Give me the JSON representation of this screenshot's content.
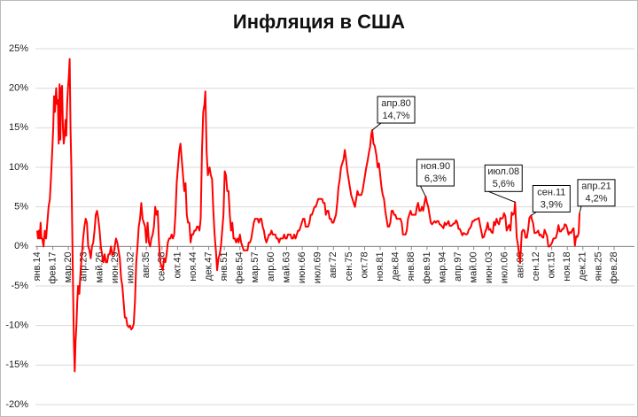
{
  "chart_data": {
    "type": "line",
    "title": "Инфляция в США",
    "grid": true,
    "color": "#ff0000",
    "ylim": [
      -20,
      25
    ],
    "yticks": [
      {
        "value": -20,
        "label": "-20%"
      },
      {
        "value": -15,
        "label": "-15%"
      },
      {
        "value": -10,
        "label": "-10%"
      },
      {
        "value": -5,
        "label": "-5%"
      },
      {
        "value": 0,
        "label": "0%"
      },
      {
        "value": 5,
        "label": "5%"
      },
      {
        "value": 10,
        "label": "10%"
      },
      {
        "value": 15,
        "label": "15%"
      },
      {
        "value": 20,
        "label": "20%"
      },
      {
        "value": 25,
        "label": "25%"
      }
    ],
    "xticks": [
      "янв.14",
      "фев.17",
      "мар.20",
      "апр.23",
      "май.26",
      "июн.29",
      "июл.32",
      "авг.35",
      "сен.38",
      "окт.41",
      "ноя.44",
      "дек.47",
      "янв.51",
      "фев.54",
      "мар.57",
      "апр.60",
      "май.63",
      "июн.66",
      "июл.69",
      "авг.72",
      "сен.75",
      "окт.78",
      "ноя.81",
      "дек.84",
      "янв.88",
      "фев.91",
      "мар.94",
      "апр.97",
      "май.00",
      "июн.03",
      "июл.06",
      "авг.09",
      "сен.12",
      "окт.15",
      "ноя.18",
      "дек.21",
      "янв.25",
      "фев.28"
    ],
    "x": [
      "янв.14",
      "мар.14",
      "май.14",
      "июл.14",
      "сен.14",
      "ноя.14",
      "янв.15",
      "апр.15",
      "июл.15",
      "окт.15",
      "янв.16",
      "апр.16",
      "июл.16",
      "окт.16",
      "янв.17",
      "мар.17",
      "май.17",
      "июл.17",
      "окт.17",
      "дек.17",
      "фев.18",
      "апр.18",
      "июн.18",
      "авг.18",
      "окт.18",
      "дек.18",
      "фев.19",
      "апр.19",
      "июн.19",
      "авг.19",
      "окт.19",
      "дек.19",
      "фев.20",
      "апр.20",
      "июн.20",
      "авг.20",
      "окт.20",
      "дек.20",
      "фев.21",
      "апр.21",
      "июн.21",
      "авг.21",
      "окт.21",
      "дек.21",
      "фев.22",
      "май.22",
      "авг.22",
      "ноя.22",
      "фев.23",
      "май.23",
      "авг.23",
      "ноя.23",
      "фев.24",
      "май.24",
      "авг.24",
      "ноя.24",
      "фев.25",
      "май.25",
      "авг.25",
      "ноя.25",
      "фев.26",
      "май.26",
      "авг.26",
      "ноя.26",
      "фев.27",
      "май.27",
      "авг.27",
      "ноя.27",
      "фев.28",
      "май.28",
      "авг.28",
      "ноя.28",
      "фев.29",
      "май.29",
      "авг.29",
      "ноя.29",
      "фев.30",
      "май.30",
      "авг.30",
      "ноя.30",
      "фев.31",
      "май.31",
      "авг.31",
      "ноя.31",
      "фев.32",
      "май.32",
      "авг.32",
      "ноя.32",
      "фев.33",
      "май.33",
      "авг.33",
      "ноя.33",
      "фев.34",
      "май.34",
      "авг.34",
      "ноя.34",
      "фев.35",
      "май.35",
      "авг.35",
      "ноя.35",
      "фев.36",
      "май.36",
      "авг.36",
      "ноя.36",
      "фев.37",
      "май.37",
      "авг.37",
      "ноя.37",
      "фев.38",
      "май.38",
      "авг.38",
      "ноя.38",
      "фев.39",
      "май.39",
      "авг.39",
      "ноя.39",
      "фев.40",
      "май.40",
      "авг.40",
      "ноя.40",
      "фев.41",
      "май.41",
      "авг.41",
      "ноя.41",
      "фев.42",
      "май.42",
      "авг.42",
      "ноя.42",
      "фев.43",
      "май.43",
      "авг.43",
      "ноя.43",
      "фев.44",
      "май.44",
      "авг.44",
      "ноя.44",
      "фев.45",
      "май.45",
      "авг.45",
      "ноя.45",
      "фев.46",
      "май.46",
      "авг.46",
      "ноя.46",
      "фев.47",
      "апр.47",
      "июл.47",
      "окт.47",
      "фев.48",
      "май.48",
      "авг.48",
      "ноя.48",
      "фев.49",
      "май.49",
      "авг.49",
      "ноя.49",
      "фев.50",
      "май.50",
      "авг.50",
      "ноя.50",
      "фев.51",
      "май.51",
      "авг.51",
      "ноя.51",
      "фев.52",
      "май.52",
      "авг.52",
      "ноя.52",
      "фев.53",
      "май.53",
      "авг.53",
      "ноя.53",
      "фев.54",
      "май.54",
      "авг.54",
      "ноя.54",
      "фев.55",
      "май.55",
      "авг.55",
      "ноя.55",
      "фев.56",
      "май.56",
      "авг.56",
      "ноя.56",
      "фев.57",
      "май.57",
      "авг.57",
      "ноя.57",
      "фев.58",
      "май.58",
      "авг.58",
      "ноя.58",
      "фев.59",
      "май.59",
      "авг.59",
      "ноя.59",
      "фев.60",
      "май.60",
      "авг.60",
      "ноя.60",
      "фев.61",
      "май.61",
      "авг.61",
      "ноя.61",
      "фев.62",
      "май.62",
      "авг.62",
      "ноя.62",
      "фев.63",
      "май.63",
      "авг.63",
      "ноя.63",
      "фев.64",
      "май.64",
      "авг.64",
      "ноя.64",
      "фев.65",
      "май.65",
      "авг.65",
      "ноя.65",
      "фев.66",
      "май.66",
      "авг.66",
      "ноя.66",
      "фев.67",
      "май.67",
      "авг.67",
      "ноя.67",
      "фев.68",
      "май.68",
      "авг.68",
      "ноя.68",
      "фев.69",
      "май.69",
      "авг.69",
      "ноя.69",
      "фев.70",
      "май.70",
      "авг.70",
      "ноя.70",
      "фев.71",
      "май.71",
      "авг.71",
      "ноя.71",
      "фев.72",
      "май.72",
      "авг.72",
      "ноя.72",
      "фев.73",
      "май.73",
      "авг.73",
      "ноя.73",
      "фев.74",
      "май.74",
      "авг.74",
      "ноя.74",
      "фев.75",
      "май.75",
      "авг.75",
      "ноя.75",
      "фев.76",
      "май.76",
      "авг.76",
      "ноя.76",
      "фев.77",
      "май.77",
      "авг.77",
      "ноя.77",
      "фев.78",
      "май.78",
      "авг.78",
      "ноя.78",
      "фев.79",
      "май.79",
      "авг.79",
      "ноя.79",
      "фев.80",
      "апр.80",
      "июл.80",
      "окт.80",
      "фев.81",
      "май.81",
      "авг.81",
      "ноя.81",
      "фев.82",
      "май.82",
      "авг.82",
      "ноя.82",
      "фев.83",
      "май.83",
      "авг.83",
      "ноя.83",
      "фев.84",
      "май.84",
      "авг.84",
      "ноя.84",
      "фев.85",
      "май.85",
      "авг.85",
      "ноя.85",
      "фев.86",
      "май.86",
      "авг.86",
      "ноя.86",
      "фев.87",
      "май.87",
      "авг.87",
      "ноя.87",
      "фев.88",
      "май.88",
      "авг.88",
      "ноя.88",
      "фев.89",
      "май.89",
      "авг.89",
      "ноя.89",
      "фев.90",
      "май.90",
      "авг.90",
      "ноя.90",
      "фев.91",
      "май.91",
      "авг.91",
      "ноя.91",
      "фев.92",
      "май.92",
      "авг.92",
      "ноя.92",
      "фев.93",
      "май.93",
      "авг.93",
      "ноя.93",
      "фев.94",
      "май.94",
      "авг.94",
      "ноя.94",
      "фев.95",
      "май.95",
      "авг.95",
      "ноя.95",
      "фев.96",
      "май.96",
      "авг.96",
      "ноя.96",
      "фев.97",
      "май.97",
      "авг.97",
      "ноя.97",
      "фев.98",
      "май.98",
      "авг.98",
      "ноя.98",
      "фев.99",
      "май.99",
      "авг.99",
      "ноя.99",
      "фев.00",
      "май.00",
      "авг.00",
      "ноя.00",
      "фев.01",
      "май.01",
      "авг.01",
      "ноя.01",
      "фев.02",
      "май.02",
      "авг.02",
      "ноя.02",
      "фев.03",
      "май.03",
      "авг.03",
      "ноя.03",
      "фев.04",
      "май.04",
      "авг.04",
      "ноя.04",
      "фев.05",
      "май.05",
      "авг.05",
      "ноя.05",
      "фев.06",
      "май.06",
      "авг.06",
      "ноя.06",
      "фев.07",
      "май.07",
      "авг.07",
      "ноя.07",
      "фев.08",
      "май.08",
      "июл.08",
      "ноя.08",
      "фев.09",
      "май.09",
      "июл.09",
      "ноя.09",
      "фев.10",
      "май.10",
      "авг.10",
      "ноя.10",
      "фев.11",
      "май.11",
      "сен.11",
      "ноя.11",
      "фев.12",
      "май.12",
      "авг.12",
      "ноя.12",
      "фев.13",
      "май.13",
      "авг.13",
      "ноя.13",
      "фев.14",
      "май.14",
      "авг.14",
      "ноя.14",
      "фев.15",
      "май.15",
      "авг.15",
      "ноя.15",
      "фев.16",
      "май.16",
      "авг.16",
      "ноя.16",
      "фев.17",
      "май.17",
      "авг.17",
      "ноя.17",
      "фев.18",
      "май.18",
      "авг.18",
      "ноя.18",
      "фев.19",
      "май.19",
      "авг.19",
      "ноя.19",
      "фев.20",
      "май.20",
      "авг.20",
      "ноя.20",
      "фев.21",
      "апр.21"
    ],
    "values": [
      2.0,
      1.0,
      2.0,
      1.0,
      3.0,
      1.0,
      1.0,
      0.0,
      2.0,
      1.0,
      3.0,
      5.0,
      6.0,
      9.0,
      12.5,
      15.0,
      19.0,
      17.0,
      20.0,
      18.0,
      18.5,
      13.0,
      20.5,
      13.5,
      20.0,
      20.3,
      15.0,
      13.0,
      14.0,
      16.0,
      14.0,
      18.0,
      20.0,
      21.5,
      23.7,
      15.0,
      10.0,
      2.5,
      -5.0,
      -12.0,
      -15.8,
      -12.0,
      -10.0,
      -7.0,
      -5.0,
      -6.0,
      -3.0,
      -1.0,
      1.0,
      2.5,
      3.5,
      3.0,
      0.0,
      -0.5,
      -1.5,
      0.0,
      0.5,
      2.0,
      4.0,
      4.5,
      3.5,
      2.0,
      0.0,
      -1.0,
      -2.0,
      -1.0,
      -2.0,
      -2.0,
      -1.0,
      -1.0,
      0.0,
      -1.0,
      -1.0,
      0.0,
      1.0,
      0.5,
      -0.5,
      -1.5,
      -4.0,
      -5.0,
      -7.0,
      -9.0,
      -9.0,
      -10.0,
      -10.2,
      -10.0,
      -10.5,
      -10.3,
      -9.8,
      -7.0,
      -2.0,
      0.0,
      2.5,
      3.5,
      5.5,
      3.5,
      3.0,
      2.5,
      0.5,
      3.0,
      0.5,
      0.0,
      1.0,
      1.5,
      2.5,
      5.0,
      4.0,
      4.5,
      0.5,
      -2.0,
      -2.5,
      -3.0,
      -1.5,
      -2.0,
      -1.0,
      0.5,
      1.0,
      1.0,
      1.5,
      1.0,
      1.5,
      4.0,
      8.0,
      10.0,
      12.0,
      13.0,
      11.0,
      9.0,
      7.0,
      8.0,
      4.0,
      3.0,
      3.0,
      0.5,
      1.5,
      1.5,
      2.0,
      2.0,
      2.5,
      2.5,
      2.0,
      3.5,
      12.0,
      17.0,
      18.0,
      19.6,
      12.0,
      9.0,
      10.0,
      9.0,
      8.5,
      4.5,
      1.5,
      -0.5,
      -3.0,
      -1.5,
      -1.0,
      0.0,
      2.0,
      4.0,
      9.5,
      9.0,
      7.0,
      7.0,
      4.0,
      2.0,
      3.0,
      1.0,
      1.0,
      0.5,
      1.0,
      0.5,
      1.5,
      0.5,
      0.0,
      -0.5,
      -0.5,
      -0.5,
      -0.5,
      0.5,
      0.5,
      1.0,
      2.0,
      3.0,
      3.5,
      3.5,
      3.5,
      3.0,
      3.5,
      3.5,
      2.5,
      2.0,
      1.0,
      0.5,
      1.0,
      1.5,
      1.5,
      2.0,
      1.5,
      1.5,
      1.5,
      1.0,
      1.0,
      0.5,
      1.0,
      1.0,
      1.0,
      1.5,
      1.0,
      1.0,
      1.5,
      1.5,
      1.5,
      1.0,
      1.0,
      1.5,
      1.0,
      1.5,
      2.0,
      2.0,
      2.5,
      3.0,
      3.5,
      3.5,
      2.5,
      2.5,
      2.5,
      3.0,
      4.0,
      4.0,
      4.5,
      5.0,
      5.0,
      5.5,
      6.0,
      6.0,
      6.0,
      6.0,
      5.5,
      5.5,
      4.0,
      4.5,
      4.5,
      3.5,
      3.5,
      3.0,
      3.0,
      3.5,
      4.0,
      5.5,
      7.5,
      8.5,
      10.0,
      10.5,
      11.0,
      12.2,
      11.0,
      9.5,
      8.5,
      7.5,
      6.5,
      6.0,
      5.5,
      5.0,
      6.0,
      7.0,
      6.5,
      6.5,
      6.5,
      7.0,
      8.0,
      9.0,
      10.0,
      10.8,
      11.8,
      12.6,
      14.2,
      14.7,
      13.0,
      12.7,
      11.5,
      10.0,
      10.5,
      9.0,
      7.5,
      6.5,
      6.0,
      4.5,
      3.5,
      2.5,
      2.5,
      3.0,
      4.5,
      4.5,
      4.0,
      4.0,
      3.5,
      3.5,
      3.5,
      3.5,
      3.0,
      1.5,
      1.5,
      1.5,
      2.0,
      3.5,
      4.0,
      4.5,
      4.0,
      4.0,
      4.0,
      4.0,
      5.0,
      5.5,
      4.5,
      4.5,
      5.0,
      4.5,
      5.5,
      6.3,
      5.5,
      5.0,
      4.0,
      3.0,
      2.8,
      3.0,
      3.2,
      3.0,
      3.2,
      3.2,
      2.8,
      2.7,
      2.5,
      2.3,
      3.0,
      2.7,
      2.9,
      3.2,
      2.6,
      2.6,
      2.7,
      2.9,
      2.9,
      3.3,
      3.0,
      2.2,
      2.2,
      1.8,
      1.4,
      1.7,
      1.6,
      1.5,
      1.6,
      2.1,
      2.3,
      2.6,
      3.2,
      3.2,
      3.4,
      3.4,
      3.5,
      3.6,
      2.7,
      1.9,
      1.1,
      1.2,
      1.8,
      2.2,
      3.0,
      2.1,
      2.2,
      1.8,
      1.7,
      3.1,
      2.7,
      3.5,
      3.0,
      2.8,
      3.6,
      3.5,
      3.6,
      4.2,
      3.8,
      2.0,
      2.4,
      2.7,
      2.0,
      4.3,
      4.0,
      4.2,
      5.6,
      1.1,
      0.2,
      -1.3,
      -2.1,
      1.8,
      2.1,
      2.0,
      1.1,
      1.1,
      2.1,
      3.6,
      3.9,
      3.4,
      2.9,
      1.7,
      1.7,
      1.8,
      2.0,
      1.4,
      1.5,
      1.2,
      1.1,
      2.1,
      1.7,
      1.3,
      0.0,
      0.0,
      0.2,
      0.5,
      1.0,
      1.0,
      1.1,
      1.7,
      2.7,
      1.9,
      1.9,
      2.2,
      2.2,
      2.8,
      2.7,
      2.2,
      1.5,
      1.8,
      1.7,
      2.1,
      2.3,
      0.1,
      1.3,
      1.2,
      1.7,
      4.2
    ],
    "callouts": [
      {
        "x": "апр.80",
        "value": 14.7,
        "label": "14,7%"
      },
      {
        "x": "ноя.90",
        "value": 6.3,
        "label": "6,3%"
      },
      {
        "x": "июл.08",
        "value": 5.6,
        "label": "5,6%"
      },
      {
        "x": "сен.11",
        "value": 3.9,
        "label": "3,9%"
      },
      {
        "x": "апр.21",
        "value": 4.2,
        "label": "4,2%"
      }
    ]
  }
}
